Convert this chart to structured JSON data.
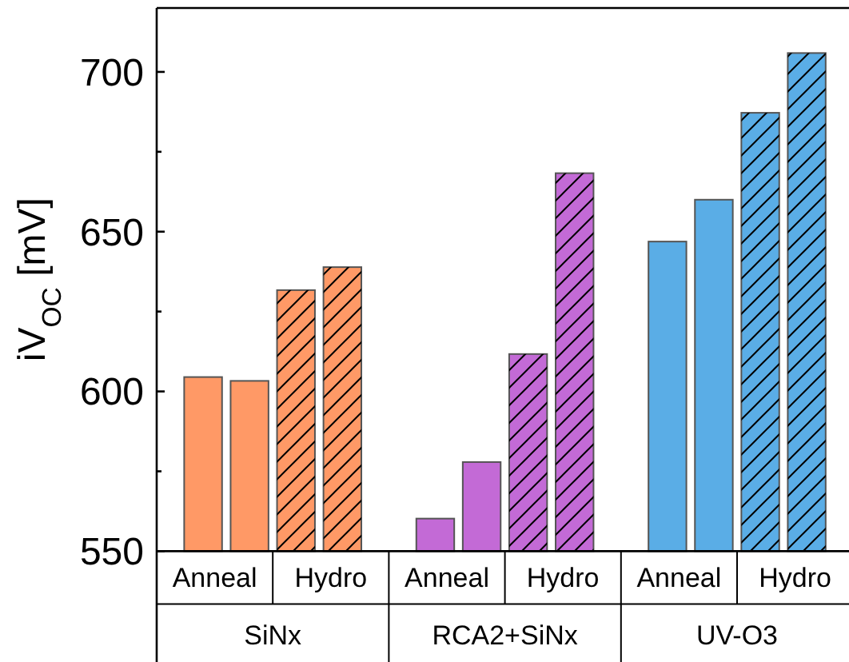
{
  "chart_data": {
    "type": "bar",
    "ylabel": "iV$_{OC}$ [mV]",
    "categories": [
      "Anneal",
      "Hydro",
      "Anneal",
      "Hydro",
      "Anneal",
      "Hydro"
    ],
    "series": [
      {
        "colors": [
          "#ff9966",
          "#ff9966",
          "#c36ad6",
          "#c36ad6",
          "#5aade6",
          "#5aade6"
        ],
        "values": [
          604.5,
          631.7,
          560.2,
          611.7,
          646.9,
          687.2
        ]
      },
      {
        "colors": [
          "#ff9966",
          "#ff9966",
          "#c36ad6",
          "#c36ad6",
          "#5aade6",
          "#5aade6"
        ],
        "values": [
          603.3,
          638.9,
          577.9,
          668.3,
          660,
          705.9
        ]
      }
    ],
    "ylim": [
      550,
      720
    ],
    "yticks": [
      550,
      {
        "value": 575,
        "label": null
      },
      600,
      {
        "value": 625,
        "label": null
      },
      650,
      {
        "value": 675,
        "label": null
      },
      700
    ],
    "grid": false,
    "annotations": [
      "SiNx",
      "RCA2+SiNx",
      "UV-O3"
    ]
  }
}
